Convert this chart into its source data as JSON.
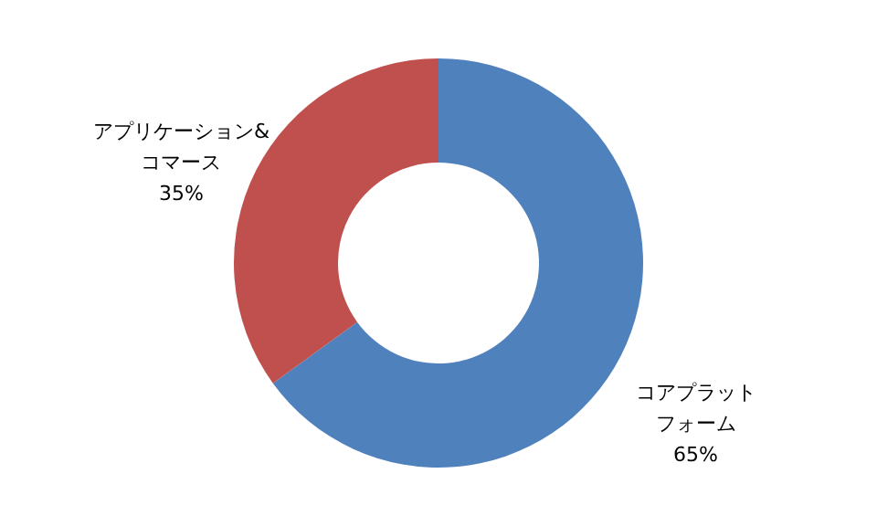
{
  "chart_data": {
    "type": "donut",
    "categories": [
      "コアプラットフォーム",
      "アプリケーション&コマース"
    ],
    "values": [
      65,
      35
    ],
    "colors": [
      "#4f81bd",
      "#c0504d"
    ],
    "value_labels": [
      "65%",
      "35%"
    ]
  }
}
